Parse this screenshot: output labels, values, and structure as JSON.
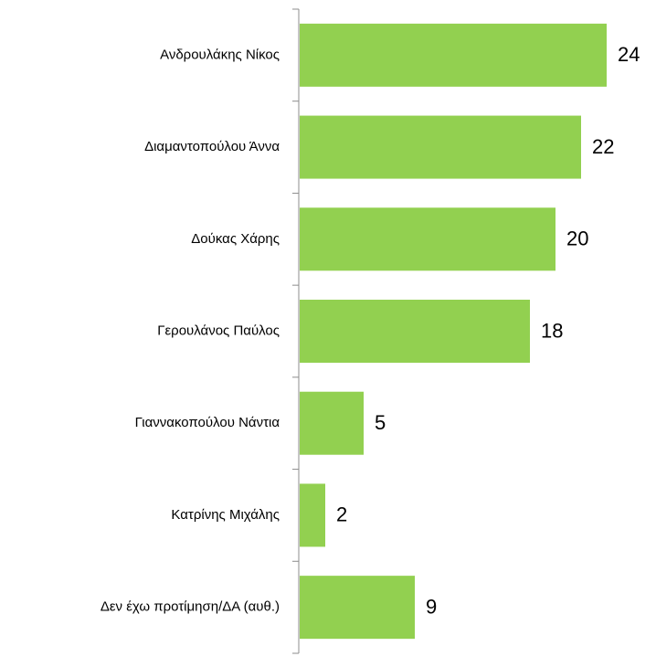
{
  "chart_data": {
    "type": "bar",
    "orientation": "horizontal",
    "categories": [
      "Ανδρουλάκης Νίκος",
      "Διαμαντοπούλου Άννα",
      "Δούκας Χάρης",
      "Γερουλάνος Παύλος",
      "Γιαννακοπούλου Νάντια",
      "Κατρίνης Μιχάλης",
      "Δεν έχω προτίμηση/ΔΑ (αυθ.)"
    ],
    "values": [
      24,
      22,
      20,
      18,
      5,
      2,
      9
    ],
    "color": "#92d050"
  }
}
